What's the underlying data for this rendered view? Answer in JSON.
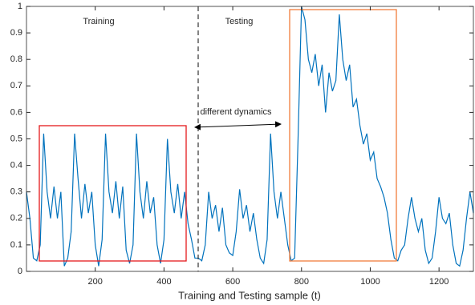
{
  "chart_data": {
    "type": "line",
    "x_label": "Training and Testing sample (t)",
    "color": "#0072bd",
    "annotations": [
      "Training",
      "Testing",
      "different dynamics"
    ],
    "xlim": [
      0,
      1300
    ],
    "xticks": [
      200,
      400,
      600,
      800,
      1000,
      1200
    ],
    "ylim": [
      0,
      1
    ],
    "yticks": [
      0,
      0.1,
      0.2,
      0.3,
      0.4,
      0.5,
      0.6,
      0.7,
      0.8,
      0.9,
      1
    ],
    "x": [
      0,
      10,
      20,
      30,
      40,
      50,
      60,
      70,
      80,
      90,
      100,
      110,
      120,
      130,
      140,
      150,
      160,
      170,
      180,
      190,
      200,
      210,
      220,
      230,
      240,
      250,
      260,
      270,
      280,
      290,
      300,
      310,
      320,
      330,
      340,
      350,
      360,
      370,
      380,
      390,
      400,
      410,
      420,
      430,
      440,
      450,
      460,
      470,
      480,
      490,
      500,
      510,
      520,
      530,
      540,
      550,
      560,
      570,
      580,
      590,
      600,
      610,
      620,
      630,
      640,
      650,
      660,
      670,
      680,
      690,
      700,
      710,
      720,
      730,
      740,
      750,
      760,
      770,
      780,
      790,
      800,
      810,
      820,
      830,
      840,
      850,
      860,
      870,
      880,
      890,
      900,
      910,
      920,
      930,
      940,
      950,
      960,
      970,
      980,
      990,
      1000,
      1010,
      1020,
      1030,
      1040,
      1050,
      1060,
      1070,
      1080,
      1090,
      1100,
      1110,
      1120,
      1130,
      1140,
      1150,
      1160,
      1170,
      1180,
      1190,
      1200,
      1210,
      1220,
      1230,
      1240,
      1250,
      1260,
      1270,
      1280,
      1290,
      1300
    ],
    "values": [
      0.3,
      0.2,
      0.05,
      0.04,
      0.1,
      0.52,
      0.3,
      0.2,
      0.32,
      0.2,
      0.3,
      0.02,
      0.05,
      0.15,
      0.52,
      0.35,
      0.2,
      0.33,
      0.22,
      0.3,
      0.1,
      0.02,
      0.12,
      0.52,
      0.3,
      0.22,
      0.34,
      0.2,
      0.32,
      0.08,
      0.03,
      0.1,
      0.52,
      0.3,
      0.2,
      0.34,
      0.22,
      0.28,
      0.1,
      0.03,
      0.12,
      0.5,
      0.3,
      0.22,
      0.33,
      0.2,
      0.3,
      0.18,
      0.12,
      0.05,
      0.05,
      0.04,
      0.1,
      0.3,
      0.2,
      0.25,
      0.15,
      0.24,
      0.1,
      0.07,
      0.06,
      0.15,
      0.31,
      0.2,
      0.25,
      0.15,
      0.22,
      0.12,
      0.05,
      0.03,
      0.12,
      0.52,
      0.3,
      0.2,
      0.3,
      0.2,
      0.1,
      0.04,
      0.05,
      0.5,
      1.0,
      0.95,
      0.8,
      0.75,
      0.82,
      0.7,
      0.78,
      0.6,
      0.75,
      0.68,
      0.72,
      0.97,
      0.8,
      0.72,
      0.78,
      0.62,
      0.65,
      0.55,
      0.48,
      0.52,
      0.42,
      0.45,
      0.35,
      0.32,
      0.28,
      0.22,
      0.12,
      0.05,
      0.04,
      0.08,
      0.1,
      0.2,
      0.28,
      0.2,
      0.15,
      0.2,
      0.08,
      0.03,
      0.05,
      0.15,
      0.28,
      0.2,
      0.18,
      0.22,
      0.1,
      0.03,
      0.02,
      0.08,
      0.2,
      0.3,
      0.22
    ]
  }
}
